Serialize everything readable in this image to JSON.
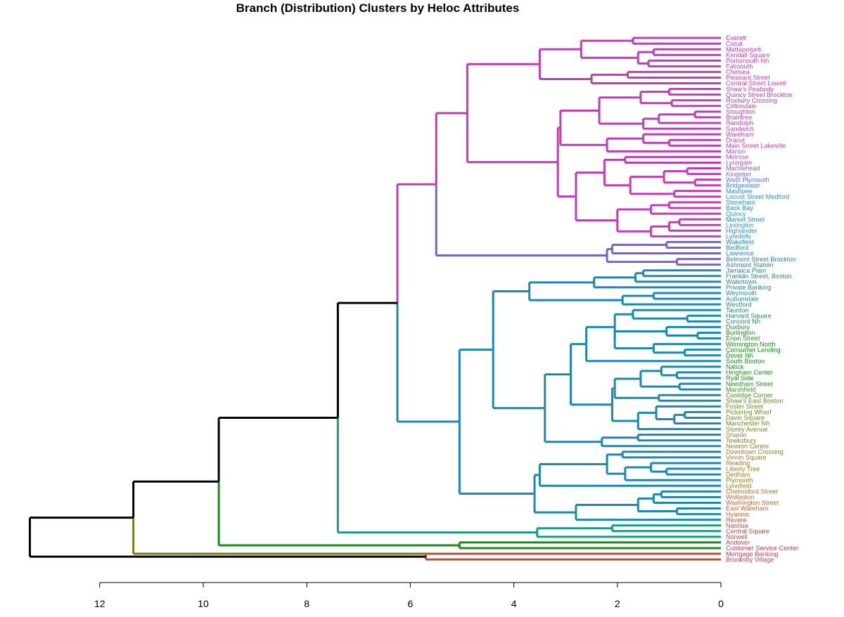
{
  "chart_data": {
    "type": "dendrogram",
    "orientation": "horizontal",
    "title": "Branch (Distribution) Clusters by Heloc Attributes",
    "xlim": [
      0,
      12
    ],
    "xticks": [
      12,
      10,
      8,
      6,
      4,
      2,
      0
    ],
    "leaves": [
      "Everett",
      "Cotuit",
      "Mattapoisett",
      "Kendall Square",
      "Portsmouth Nh",
      "Falmouth",
      "Chelsea",
      "Pleasant Street",
      "Central Street Lowell",
      "Shaw's Peabody",
      "Quincy Street Brockton",
      "Roxbury Crossing",
      "Cliftondale",
      "Stoughton",
      "Braintree",
      "Randolph",
      "Sandwich",
      "Wareham",
      "Dracut",
      "Main Street Lakeville",
      "Marion",
      "Melrose",
      "Lynngate",
      "Marblehead",
      "Kingston",
      "West Plymouth",
      "Bridgewater",
      "Mashpee",
      "Locust Street Medford",
      "Stoneham",
      "Back Bay",
      "Quincy",
      "Market Street",
      "Lexington",
      "Highlander",
      "Lynnfells",
      "Wakefield",
      "Bedford",
      "Lawrence",
      "Belmont Street Brockton",
      "Ashmont Station",
      "Jamaica Plain",
      "Franklin Street, Boston",
      "Watertown",
      "Private Banking",
      "Weymouth",
      "Auburndale",
      "Westford",
      "Taunton",
      "Harvard Square",
      "Concord Nh",
      "Duxbury",
      "Burlington",
      "Enon Street",
      "Wilmington North",
      "Consumer Lending",
      "Dover Nh",
      "South Boston",
      "Natick",
      "Hingham Center",
      "Ryal Side",
      "Needham Street",
      "Marshfield",
      "Coolidge Corner",
      "Shaw's East Boston",
      "Foster Street",
      "Pickering Wharf",
      "Davis Square",
      "Manchester Nh",
      "Storey Avenue",
      "Sharon",
      "Tewksbury",
      "Newton Centre",
      "Downtown Crossing",
      "Vinnin Square",
      "Reading",
      "Liberty Tree",
      "Dedham",
      "Plymouth",
      "Lynnfield",
      "Chelmsford Street",
      "Wollaston",
      "Washington Street",
      "East Wareham",
      "Hyannis",
      "Revere",
      "Nashua",
      "Central Square",
      "Norwell",
      "Andover",
      "Customer Service Center",
      "Mortgage Banking",
      "Brooksby Village"
    ],
    "merges": [
      {
        "a": "Everett",
        "b": "Cotuit",
        "h": 1.7,
        "id": "c1",
        "color": "#c03cb4"
      },
      {
        "a": "Mattapoisett",
        "b": "Kendall Square",
        "h": 1.3,
        "id": "c2",
        "color": "#c03cb4"
      },
      {
        "a": "Portsmouth Nh",
        "b": "Falmouth",
        "h": 1.4,
        "id": "c3",
        "color": "#c03cb4"
      },
      {
        "a": "c2",
        "b": "c3",
        "h": 1.6,
        "id": "c4",
        "color": "#c03cb4"
      },
      {
        "a": "c1",
        "b": "c4",
        "h": 2.7,
        "id": "c5",
        "color": "#c03cb4"
      },
      {
        "a": "Chelsea",
        "b": "Pleasant Street",
        "h": 1.8,
        "id": "c6",
        "color": "#c03cb4"
      },
      {
        "a": "c6",
        "b": "Central Street Lowell",
        "h": 2.5,
        "id": "c7",
        "color": "#c03cb4"
      },
      {
        "a": "c5",
        "b": "c7",
        "h": 3.5,
        "id": "c8",
        "color": "#c03cb4"
      },
      {
        "a": "Shaw's Peabody",
        "b": "Quincy Street Brockton",
        "h": 1.0,
        "id": "c9",
        "color": "#c03cb4"
      },
      {
        "a": "Roxbury Crossing",
        "b": "Cliftondale",
        "h": 0.95,
        "id": "c10",
        "color": "#c03cb4"
      },
      {
        "a": "c9",
        "b": "c10",
        "h": 1.55,
        "id": "c11",
        "color": "#c03cb4"
      },
      {
        "a": "Stoughton",
        "b": "Braintree",
        "h": 0.5,
        "id": "c12",
        "color": "#c03cb4"
      },
      {
        "a": "c12",
        "b": "Randolph",
        "h": 1.2,
        "id": "c13",
        "color": "#c03cb4"
      },
      {
        "a": "c13",
        "b": "Sandwich",
        "h": 1.5,
        "id": "c14",
        "color": "#c03cb4"
      },
      {
        "a": "c11",
        "b": "c14",
        "h": 2.35,
        "id": "c15",
        "color": "#c03cb4"
      },
      {
        "a": "Dracut",
        "b": "Main Street Lakeville",
        "h": 1.0,
        "id": "c16",
        "color": "#c03cb4"
      },
      {
        "a": "Wareham",
        "b": "c16",
        "h": 1.5,
        "id": "c17",
        "color": "#c03cb4"
      },
      {
        "a": "c17",
        "b": "Marion",
        "h": 2.2,
        "id": "c18",
        "color": "#c03cb4"
      },
      {
        "a": "c15",
        "b": "c18",
        "h": 3.1,
        "id": "c19",
        "color": "#c03cb4"
      },
      {
        "a": "Melrose",
        "b": "Lynngate",
        "h": 1.85,
        "id": "c20",
        "color": "#c03cb4"
      },
      {
        "a": "West Plymouth",
        "b": "Bridgewater",
        "h": 0.5,
        "id": "c21",
        "color": "#c03cb4"
      },
      {
        "a": "Marblehead",
        "b": "Kingston",
        "h": 0.65,
        "id": "c22",
        "color": "#c03cb4"
      },
      {
        "a": "c22",
        "b": "c21",
        "h": 1.1,
        "id": "c23",
        "color": "#c03cb4"
      },
      {
        "a": "Mashpee",
        "b": "Locust Street Medford",
        "h": 0.9,
        "id": "c24",
        "color": "#c03cb4"
      },
      {
        "a": "c23",
        "b": "c24",
        "h": 1.75,
        "id": "c25",
        "color": "#c03cb4"
      },
      {
        "a": "c20",
        "b": "c25",
        "h": 2.25,
        "id": "c26",
        "color": "#c03cb4"
      },
      {
        "a": "Stoneham",
        "b": "Back Bay",
        "h": 1.0,
        "id": "c27",
        "color": "#c03cb4"
      },
      {
        "a": "c27",
        "b": "Quincy",
        "h": 1.35,
        "id": "c28",
        "color": "#c03cb4"
      },
      {
        "a": "Market Street",
        "b": "Lexington",
        "h": 0.8,
        "id": "c29",
        "color": "#c03cb4"
      },
      {
        "a": "c29",
        "b": "Highlander",
        "h": 1.0,
        "id": "c30",
        "color": "#c03cb4"
      },
      {
        "a": "c30",
        "b": "Lynnfells",
        "h": 1.35,
        "id": "c31",
        "color": "#c03cb4"
      },
      {
        "a": "c28",
        "b": "c31",
        "h": 2.0,
        "id": "c32",
        "color": "#c03cb4"
      },
      {
        "a": "c26",
        "b": "c32",
        "h": 2.8,
        "id": "c33",
        "color": "#c03cb4"
      },
      {
        "a": "c19",
        "b": "c33",
        "h": 3.15,
        "id": "c34",
        "color": "#c03cb4"
      },
      {
        "a": "c8",
        "b": "c34",
        "h": 4.9,
        "id": "c35",
        "color": "#c03cb4"
      },
      {
        "a": "Wakefield",
        "b": "Bedford",
        "h": 1.05,
        "id": "c36",
        "color": "#7b61c9"
      },
      {
        "a": "c36",
        "b": "Lawrence",
        "h": 2.1,
        "id": "c37",
        "color": "#7b61c9"
      },
      {
        "a": "Belmont Street Brockton",
        "b": "Ashmont Station",
        "h": 0.85,
        "id": "c38",
        "color": "#7b61c9"
      },
      {
        "a": "c37",
        "b": "c38",
        "h": 2.2,
        "id": "c39",
        "color": "#7b61c9"
      },
      {
        "a": "c35",
        "b": "c39",
        "h": 5.5,
        "id": "c40",
        "color": "#c03cb4",
        "stemA": "#c03cb4",
        "stemB": "#7b61c9"
      },
      {
        "a": "Jamaica Plain",
        "b": "Franklin Street, Boston",
        "h": 1.5,
        "id": "c41",
        "color": "#1a88b0"
      },
      {
        "a": "c41",
        "b": "Watertown",
        "h": 1.65,
        "id": "c42",
        "color": "#1a88b0"
      },
      {
        "a": "c42",
        "b": "Private Banking",
        "h": 2.45,
        "id": "c43",
        "color": "#1a88b0"
      },
      {
        "a": "Weymouth",
        "b": "Auburndale",
        "h": 1.3,
        "id": "c44",
        "color": "#1a88b0"
      },
      {
        "a": "c44",
        "b": "Westford",
        "h": 1.9,
        "id": "c45",
        "color": "#1a88b0"
      },
      {
        "a": "c43",
        "b": "c45",
        "h": 3.7,
        "id": "c46",
        "color": "#1a88b0"
      },
      {
        "a": "Harvard Square",
        "b": "Concord Nh",
        "h": 0.65,
        "id": "c47",
        "color": "#1a88b0"
      },
      {
        "a": "Taunton",
        "b": "c47",
        "h": 1.7,
        "id": "c48",
        "color": "#1a88b0"
      },
      {
        "a": "Burlington",
        "b": "Enon Street",
        "h": 0.45,
        "id": "c49",
        "color": "#1a88b0"
      },
      {
        "a": "Duxbury",
        "b": "c49",
        "h": 1.05,
        "id": "c50",
        "color": "#1a88b0"
      },
      {
        "a": "Consumer Lending",
        "b": "Dover Nh",
        "h": 0.7,
        "id": "c51",
        "color": "#1a88b0"
      },
      {
        "a": "Wilmington North",
        "b": "c51",
        "h": 1.3,
        "id": "c52",
        "color": "#1a88b0"
      },
      {
        "a": "c50",
        "b": "c52",
        "h": 2.05,
        "id": "c53",
        "color": "#1a88b0"
      },
      {
        "a": "c48",
        "b": "c53",
        "h": 2.05,
        "id": "c54",
        "color": "#1a88b0"
      },
      {
        "a": "c54",
        "b": "South Boston",
        "h": 2.6,
        "id": "c55",
        "color": "#1a88b0"
      },
      {
        "a": "Hingham Center",
        "b": "Ryal Side",
        "h": 0.85,
        "id": "c56",
        "color": "#1a88b0"
      },
      {
        "a": "Natick",
        "b": "c56",
        "h": 1.15,
        "id": "c57",
        "color": "#1a88b0"
      },
      {
        "a": "Needham Street",
        "b": "Marshfield",
        "h": 0.8,
        "id": "c58",
        "color": "#1a88b0"
      },
      {
        "a": "c57",
        "b": "c58",
        "h": 1.55,
        "id": "c59",
        "color": "#1a88b0"
      },
      {
        "a": "Coolidge Corner",
        "b": "Shaw's East Boston",
        "h": 1.2,
        "id": "c60",
        "color": "#1a88b0"
      },
      {
        "a": "c59",
        "b": "c60",
        "h": 2.05,
        "id": "c61",
        "color": "#1a88b0"
      },
      {
        "a": "Pickering Wharf",
        "b": "Davis Square",
        "h": 0.7,
        "id": "c62",
        "color": "#1a88b0"
      },
      {
        "a": "c62",
        "b": "Manchester Nh",
        "h": 0.9,
        "id": "c63",
        "color": "#1a88b0"
      },
      {
        "a": "Foster Street",
        "b": "c63",
        "h": 1.25,
        "id": "c64",
        "color": "#1a88b0"
      },
      {
        "a": "c64",
        "b": "Storey Avenue",
        "h": 1.6,
        "id": "c65",
        "color": "#1a88b0"
      },
      {
        "a": "c61",
        "b": "c65",
        "h": 2.1,
        "id": "c66",
        "color": "#1a88b0"
      },
      {
        "a": "c55",
        "b": "c66",
        "h": 2.9,
        "id": "c67",
        "color": "#1a88b0"
      },
      {
        "a": "Sharon",
        "b": "Tewksbury",
        "h": 1.6,
        "id": "c68",
        "color": "#1a88b0"
      },
      {
        "a": "c68",
        "b": "Newton Centre",
        "h": 2.3,
        "id": "c69",
        "color": "#1a88b0"
      },
      {
        "a": "c67",
        "b": "c69",
        "h": 3.4,
        "id": "c70",
        "color": "#1a88b0"
      },
      {
        "a": "c46",
        "b": "c70",
        "h": 4.4,
        "id": "c71",
        "color": "#1a88b0"
      },
      {
        "a": "Downtown Crossing",
        "b": "Vinnin Square",
        "h": 1.9,
        "id": "c72",
        "color": "#1a88b0"
      },
      {
        "a": "Liberty Tree",
        "b": "Dedham",
        "h": 1.05,
        "id": "c73",
        "color": "#1a88b0"
      },
      {
        "a": "Reading",
        "b": "c73",
        "h": 1.35,
        "id": "c74",
        "color": "#1a88b0"
      },
      {
        "a": "c74",
        "b": "Plymouth",
        "h": 1.85,
        "id": "c75",
        "color": "#1a88b0"
      },
      {
        "a": "c72",
        "b": "c75",
        "h": 2.2,
        "id": "c76",
        "color": "#1a88b0"
      },
      {
        "a": "c76",
        "b": "Lynnfield",
        "h": 3.5,
        "id": "c77",
        "color": "#1a88b0"
      },
      {
        "a": "Chelmsford Street",
        "b": "Wollaston",
        "h": 1.15,
        "id": "c78",
        "color": "#1a88b0"
      },
      {
        "a": "c78",
        "b": "Washington Street",
        "h": 1.3,
        "id": "c79",
        "color": "#1a88b0"
      },
      {
        "a": "East Wareham",
        "b": "Hyannis",
        "h": 0.85,
        "id": "c80",
        "color": "#1a88b0"
      },
      {
        "a": "c79",
        "b": "c80",
        "h": 1.6,
        "id": "c81",
        "color": "#1a88b0"
      },
      {
        "a": "c81",
        "b": "Revere",
        "h": 2.8,
        "id": "c82",
        "color": "#1a88b0"
      },
      {
        "a": "c77",
        "b": "c82",
        "h": 3.6,
        "id": "c83",
        "color": "#1a88b0"
      },
      {
        "a": "c71",
        "b": "c83",
        "h": 5.05,
        "id": "c84",
        "color": "#1a88b0"
      },
      {
        "a": "c40",
        "b": "c84",
        "h": 6.25,
        "id": "c85",
        "color": "#000000",
        "stemA": "#c03cb4",
        "stemB": "#1a88b0"
      },
      {
        "a": "Nashua",
        "b": "Central Square",
        "h": 2.1,
        "id": "c86",
        "color": "#169a82"
      },
      {
        "a": "c86",
        "b": "Norwell",
        "h": 3.55,
        "id": "c87",
        "color": "#169a82"
      },
      {
        "a": "c85",
        "b": "c87",
        "h": 7.4,
        "id": "c88",
        "color": "#000000",
        "stemA": "#000000",
        "stemB": "#169a82"
      },
      {
        "a": "Andover",
        "b": "Customer Service Center",
        "h": 5.05,
        "id": "c89",
        "color": "#1d8a1d"
      },
      {
        "a": "c88",
        "b": "c89",
        "h": 9.7,
        "id": "c90",
        "color": "#000000",
        "stemA": "#000000",
        "stemB": "#1d8a1d"
      },
      {
        "a": "c90",
        "b": "Mortgage Banking",
        "h": 11.35,
        "id": "c91",
        "color": "#000000",
        "stemA": "#000000",
        "stemB": "#7a7d1a"
      },
      {
        "a": "Brooksby Village",
        "b": "c92",
        "h": 0,
        "id": "unused",
        "color": "#000000"
      }
    ],
    "final_cluster": {
      "a": "c91",
      "b": "Brooksby Village",
      "h": 13.35
    },
    "tail_cluster": {
      "a": "Mortgage Banking",
      "b": "Brooksby Village",
      "h": 5.7
    }
  }
}
